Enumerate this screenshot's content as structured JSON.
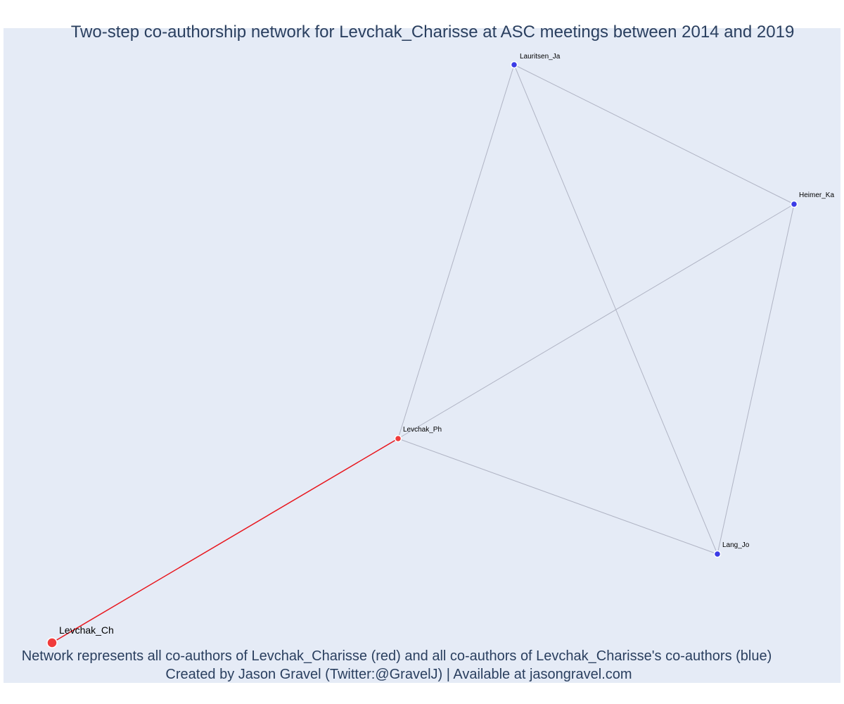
{
  "title": "Two-step co-authorship network for Levchak_Charisse at ASC meetings between 2014 and 2019",
  "caption": {
    "line1": "Network represents all co-authors of Levchak_Charisse (red) and all co-authors of Levchak_Charisse's co-authors (blue)",
    "line2": "Created by Jason Gravel (Twitter:@GravelJ) | Available at jasongravel.com"
  },
  "colors": {
    "background": "#e5ebf6",
    "red": "#e8161d",
    "red_node": "#f03b3b",
    "blue_node": "#3b3be6",
    "edge": "#b0b4c4",
    "text": "#2a3f5f"
  },
  "nodes": [
    {
      "id": "Levchak_Ch",
      "label": "Levchak_Ch",
      "group": "ego"
    },
    {
      "id": "Levchak_Ph",
      "label": "Levchak_Ph",
      "group": "co-author"
    },
    {
      "id": "Lauritsen_Ja",
      "label": "Lauritsen_Ja",
      "group": "second-step"
    },
    {
      "id": "Heimer_Ka",
      "label": "Heimer_Ka",
      "group": "second-step"
    },
    {
      "id": "Lang_Jo",
      "label": "Lang_Jo",
      "group": "second-step"
    }
  ],
  "edges": [
    {
      "source": "Levchak_Ch",
      "target": "Levchak_Ph"
    },
    {
      "source": "Levchak_Ph",
      "target": "Lauritsen_Ja"
    },
    {
      "source": "Levchak_Ph",
      "target": "Heimer_Ka"
    },
    {
      "source": "Levchak_Ph",
      "target": "Lang_Jo"
    },
    {
      "source": "Lauritsen_Ja",
      "target": "Heimer_Ka"
    },
    {
      "source": "Lauritsen_Ja",
      "target": "Lang_Jo"
    },
    {
      "source": "Heimer_Ka",
      "target": "Lang_Jo"
    }
  ]
}
